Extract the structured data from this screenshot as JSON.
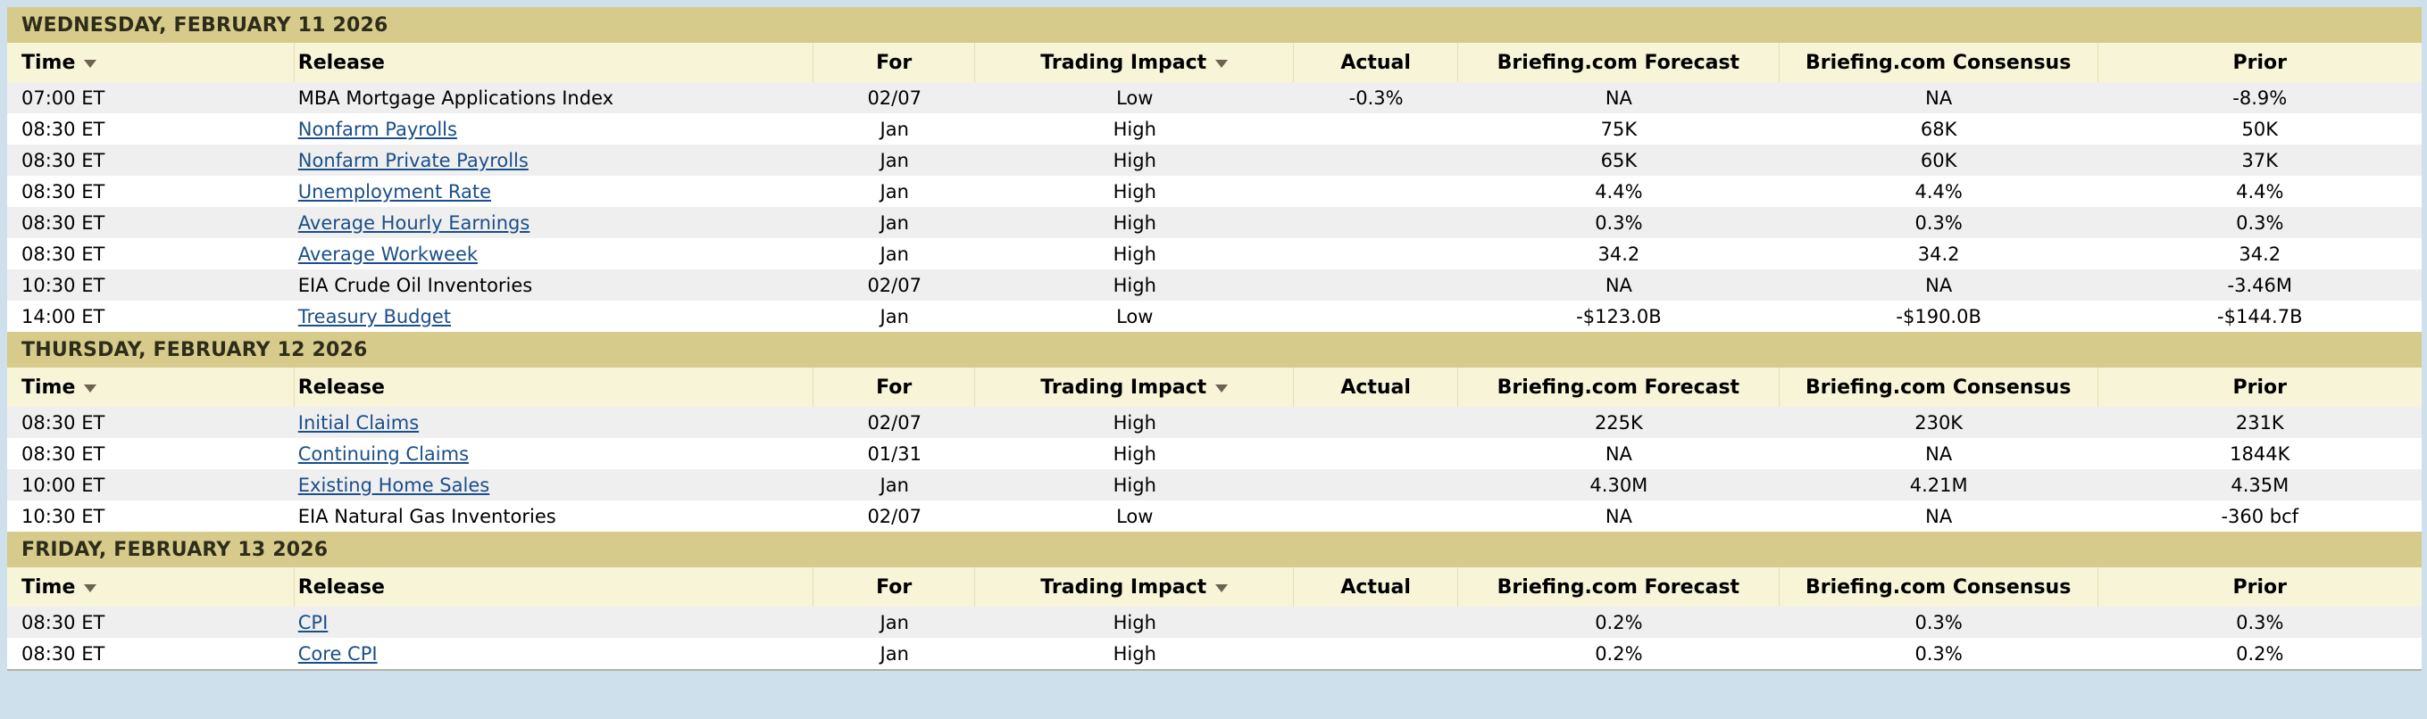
{
  "colors": {
    "page_background": "#cfe0ed",
    "day_band_background": "#d7cb8b",
    "day_band_text": "#2e2c1a",
    "header_row_background": "#f8f4d8",
    "header_divider": "#e5deb6",
    "stripe_row_background": "#efefef",
    "row_background": "#ffffff",
    "link_color": "#1a4e8a",
    "text_color": "#000000",
    "sort_arrow_color": "#6e6352",
    "table_bottom_border": "#b2b2a6"
  },
  "columns": [
    {
      "key": "time",
      "label": "Time",
      "sortable": true
    },
    {
      "key": "release",
      "label": "Release",
      "sortable": false
    },
    {
      "key": "for",
      "label": "For",
      "sortable": false
    },
    {
      "key": "impact",
      "label": "Trading Impact",
      "sortable": true
    },
    {
      "key": "actual",
      "label": "Actual",
      "sortable": false
    },
    {
      "key": "forecast",
      "label": "Briefing.com Forecast",
      "sortable": false
    },
    {
      "key": "consensus",
      "label": "Briefing.com Consensus",
      "sortable": false
    },
    {
      "key": "prior",
      "label": "Prior",
      "sortable": false
    }
  ],
  "sections": [
    {
      "date": "WEDNESDAY, FEBRUARY 11 2026",
      "rows": [
        {
          "time": "07:00 ET",
          "release": "MBA Mortgage Applications Index",
          "is_link": false,
          "for": "02/07",
          "impact": "Low",
          "actual": "-0.3%",
          "forecast": "NA",
          "consensus": "NA",
          "prior": "-8.9%"
        },
        {
          "time": "08:30 ET",
          "release": "Nonfarm Payrolls",
          "is_link": true,
          "for": "Jan",
          "impact": "High",
          "actual": "",
          "forecast": "75K",
          "consensus": "68K",
          "prior": "50K"
        },
        {
          "time": "08:30 ET",
          "release": "Nonfarm Private Payrolls",
          "is_link": true,
          "for": "Jan",
          "impact": "High",
          "actual": "",
          "forecast": "65K",
          "consensus": "60K",
          "prior": "37K"
        },
        {
          "time": "08:30 ET",
          "release": "Unemployment Rate",
          "is_link": true,
          "for": "Jan",
          "impact": "High",
          "actual": "",
          "forecast": "4.4%",
          "consensus": "4.4%",
          "prior": "4.4%"
        },
        {
          "time": "08:30 ET",
          "release": "Average Hourly Earnings",
          "is_link": true,
          "for": "Jan",
          "impact": "High",
          "actual": "",
          "forecast": "0.3%",
          "consensus": "0.3%",
          "prior": "0.3%"
        },
        {
          "time": "08:30 ET",
          "release": "Average Workweek",
          "is_link": true,
          "for": "Jan",
          "impact": "High",
          "actual": "",
          "forecast": "34.2",
          "consensus": "34.2",
          "prior": "34.2"
        },
        {
          "time": "10:30 ET",
          "release": "EIA Crude Oil Inventories",
          "is_link": false,
          "for": "02/07",
          "impact": "High",
          "actual": "",
          "forecast": "NA",
          "consensus": "NA",
          "prior": "-3.46M"
        },
        {
          "time": "14:00 ET",
          "release": "Treasury Budget",
          "is_link": true,
          "for": "Jan",
          "impact": "Low",
          "actual": "",
          "forecast": "-$123.0B",
          "consensus": "-$190.0B",
          "prior": "-$144.7B"
        }
      ]
    },
    {
      "date": "THURSDAY, FEBRUARY 12 2026",
      "rows": [
        {
          "time": "08:30 ET",
          "release": "Initial Claims",
          "is_link": true,
          "for": "02/07",
          "impact": "High",
          "actual": "",
          "forecast": "225K",
          "consensus": "230K",
          "prior": "231K"
        },
        {
          "time": "08:30 ET",
          "release": "Continuing Claims",
          "is_link": true,
          "for": "01/31",
          "impact": "High",
          "actual": "",
          "forecast": "NA",
          "consensus": "NA",
          "prior": "1844K"
        },
        {
          "time": "10:00 ET",
          "release": "Existing Home Sales",
          "is_link": true,
          "for": "Jan",
          "impact": "High",
          "actual": "",
          "forecast": "4.30M",
          "consensus": "4.21M",
          "prior": "4.35M"
        },
        {
          "time": "10:30 ET",
          "release": "EIA Natural Gas Inventories",
          "is_link": false,
          "for": "02/07",
          "impact": "Low",
          "actual": "",
          "forecast": "NA",
          "consensus": "NA",
          "prior": "-360 bcf"
        }
      ]
    },
    {
      "date": "FRIDAY, FEBRUARY 13 2026",
      "rows": [
        {
          "time": "08:30 ET",
          "release": "CPI",
          "is_link": true,
          "for": "Jan",
          "impact": "High",
          "actual": "",
          "forecast": "0.2%",
          "consensus": "0.3%",
          "prior": "0.3%"
        },
        {
          "time": "08:30 ET",
          "release": "Core CPI",
          "is_link": true,
          "for": "Jan",
          "impact": "High",
          "actual": "",
          "forecast": "0.2%",
          "consensus": "0.3%",
          "prior": "0.2%"
        }
      ]
    }
  ]
}
